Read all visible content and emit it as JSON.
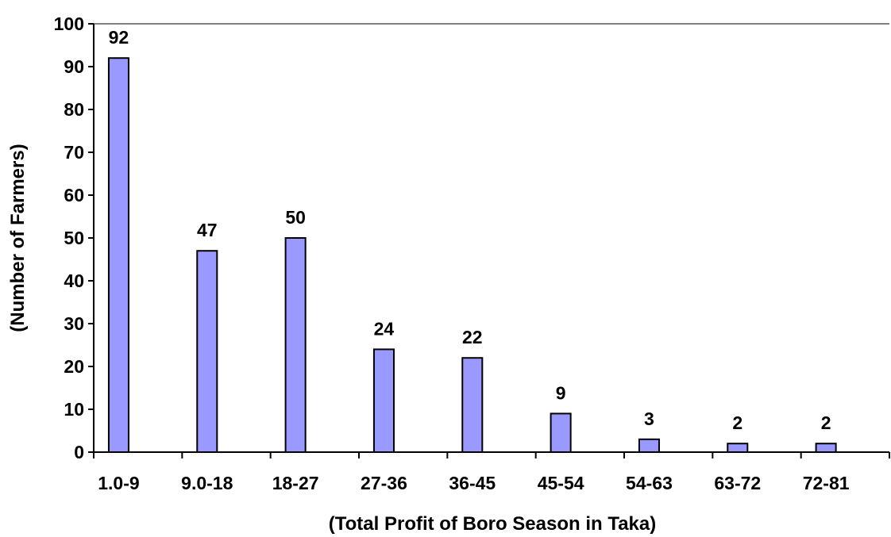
{
  "chart_data": {
    "type": "bar",
    "title": "",
    "xlabel": "(Total Profit of Boro Season in Taka)",
    "ylabel": "(Number of Farmers)",
    "categories": [
      "1.0-9",
      "9.0-18",
      "18-27",
      "27-36",
      "36-45",
      "45-54",
      "54-63",
      "63-72",
      "72-81"
    ],
    "values": [
      92,
      47,
      50,
      24,
      22,
      9,
      3,
      2,
      2
    ],
    "ylim": [
      0,
      100
    ],
    "yticks": [
      0,
      10,
      20,
      30,
      40,
      50,
      60,
      70,
      80,
      90,
      100
    ],
    "grid": false,
    "legend": "none",
    "colors": {
      "bar_fill": "#9999ff",
      "bar_stroke": "#000000",
      "axis": "#000000",
      "top_border": "#808080"
    }
  }
}
